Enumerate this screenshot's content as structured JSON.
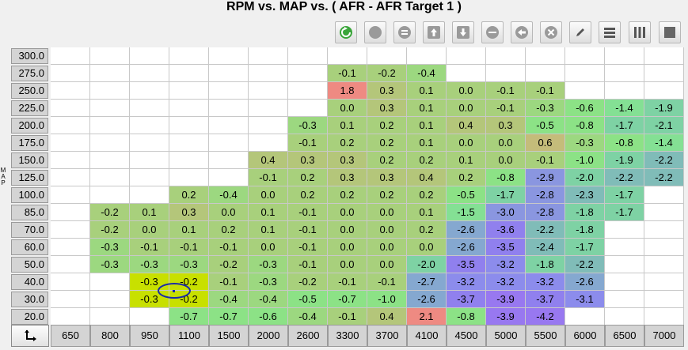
{
  "title": "RPM vs. MAP vs. ( AFR - AFR Target 1 )",
  "y_axis_label": [
    "M",
    "A",
    "P"
  ],
  "toolbar": [
    {
      "name": "refresh-green-button",
      "icon": "refresh-icon"
    },
    {
      "name": "record-button",
      "icon": "circle-icon"
    },
    {
      "name": "stop-button",
      "icon": "stop-icon"
    },
    {
      "name": "up-button",
      "icon": "arrow-up-icon"
    },
    {
      "name": "down-button",
      "icon": "arrow-down-icon"
    },
    {
      "name": "minus-button",
      "icon": "minus-icon"
    },
    {
      "name": "back-button",
      "icon": "arrow-left-icon"
    },
    {
      "name": "clear-button",
      "icon": "x-icon"
    },
    {
      "name": "pencil-button",
      "icon": "pencil-icon"
    },
    {
      "name": "rows-button",
      "icon": "rows-icon"
    },
    {
      "name": "columns-button",
      "icon": "columns-icon"
    },
    {
      "name": "full-button",
      "icon": "square-icon"
    }
  ],
  "rpm": [
    "650",
    "800",
    "950",
    "1100",
    "1500",
    "2000",
    "2600",
    "3300",
    "3700",
    "4100",
    "4500",
    "5000",
    "5500",
    "6000",
    "6500",
    "7000"
  ],
  "map": [
    "300.0",
    "275.0",
    "250.0",
    "225.0",
    "200.0",
    "175.0",
    "150.0",
    "125.0",
    "100.0",
    "85.0",
    "70.0",
    "60.0",
    "50.0",
    "40.0",
    "30.0",
    "20.0"
  ],
  "cells": [
    [
      "",
      "",
      "",
      "",
      "",
      "",
      "",
      "",
      "",
      "",
      "",
      "",
      "",
      "",
      "",
      ""
    ],
    [
      "",
      "",
      "",
      "",
      "",
      "",
      "",
      "-0.1",
      "-0.2",
      "-0.4",
      "",
      "",
      "",
      "",
      "",
      ""
    ],
    [
      "",
      "",
      "",
      "",
      "",
      "",
      "",
      "1.8",
      "0.3",
      "0.1",
      "0.0",
      "-0.1",
      "-0.1",
      "",
      "",
      ""
    ],
    [
      "",
      "",
      "",
      "",
      "",
      "",
      "",
      "0.0",
      "0.3",
      "0.1",
      "0.0",
      "-0.1",
      "-0.3",
      "-0.6",
      "-1.4",
      "-1.9"
    ],
    [
      "",
      "",
      "",
      "",
      "",
      "",
      "-0.3",
      "0.1",
      "0.2",
      "0.1",
      "0.4",
      "0.3",
      "-0.5",
      "-0.8",
      "-1.7",
      "-2.1"
    ],
    [
      "",
      "",
      "",
      "",
      "",
      "",
      "-0.1",
      "0.2",
      "0.2",
      "0.1",
      "0.0",
      "0.0",
      "0.6",
      "-0.3",
      "-0.8",
      "-1.4"
    ],
    [
      "",
      "",
      "",
      "",
      "",
      "0.4",
      "0.3",
      "0.3",
      "0.2",
      "0.2",
      "0.1",
      "0.0",
      "-0.1",
      "-1.0",
      "-1.9",
      "-2.2"
    ],
    [
      "",
      "",
      "",
      "",
      "",
      "-0.1",
      "0.2",
      "0.3",
      "0.3",
      "0.4",
      "0.2",
      "-0.8",
      "-2.9",
      "-2.0",
      "-2.2",
      "-2.2"
    ],
    [
      "",
      "",
      "",
      "0.2",
      "-0.4",
      "0.0",
      "0.2",
      "0.2",
      "0.2",
      "0.2",
      "-0.5",
      "-1.7",
      "-2.8",
      "-2.3",
      "-1.7",
      ""
    ],
    [
      "",
      "-0.2",
      "0.1",
      "0.3",
      "0.0",
      "0.1",
      "-0.1",
      "0.0",
      "0.0",
      "0.1",
      "-1.5",
      "-3.0",
      "-2.8",
      "-1.8",
      "-1.7",
      ""
    ],
    [
      "",
      "-0.2",
      "0.0",
      "0.1",
      "0.2",
      "0.1",
      "-0.1",
      "0.0",
      "0.0",
      "0.2",
      "-2.6",
      "-3.6",
      "-2.2",
      "-1.8",
      "",
      ""
    ],
    [
      "",
      "-0.3",
      "-0.1",
      "-0.1",
      "-0.1",
      "0.0",
      "-0.1",
      "0.0",
      "0.0",
      "0.0",
      "-2.6",
      "-3.5",
      "-2.4",
      "-1.7",
      "",
      ""
    ],
    [
      "",
      "-0.3",
      "-0.3",
      "-0.3",
      "-0.2",
      "-0.3",
      "-0.1",
      "0.0",
      "0.0",
      "-2.0",
      "-3.5",
      "-3.2",
      "-1.8",
      "-2.2",
      "",
      ""
    ],
    [
      "",
      "",
      "-0.3",
      "-0.2",
      "-0.1",
      "-0.3",
      "-0.2",
      "-0.1",
      "-0.1",
      "-2.7",
      "-3.2",
      "-3.2",
      "-3.2",
      "-2.6",
      "",
      ""
    ],
    [
      "",
      "",
      "-0.3",
      "-0.2",
      "-0.4",
      "-0.4",
      "-0.5",
      "-0.7",
      "-1.0",
      "-2.6",
      "-3.7",
      "-3.9",
      "-3.7",
      "-3.1",
      "",
      ""
    ],
    [
      "",
      "",
      "",
      "-0.7",
      "-0.7",
      "-0.6",
      "-0.4",
      "-0.1",
      "0.4",
      "2.1",
      "-0.8",
      "-3.9",
      "-4.2",
      "",
      "",
      ""
    ]
  ],
  "highlight_cells": [
    [
      13,
      2
    ],
    [
      13,
      3
    ],
    [
      14,
      2
    ],
    [
      14,
      3
    ]
  ],
  "colors": {
    "cell_base": "#ffffff",
    "highlight": "#c8e000",
    "marker": "#1a2aa8"
  }
}
